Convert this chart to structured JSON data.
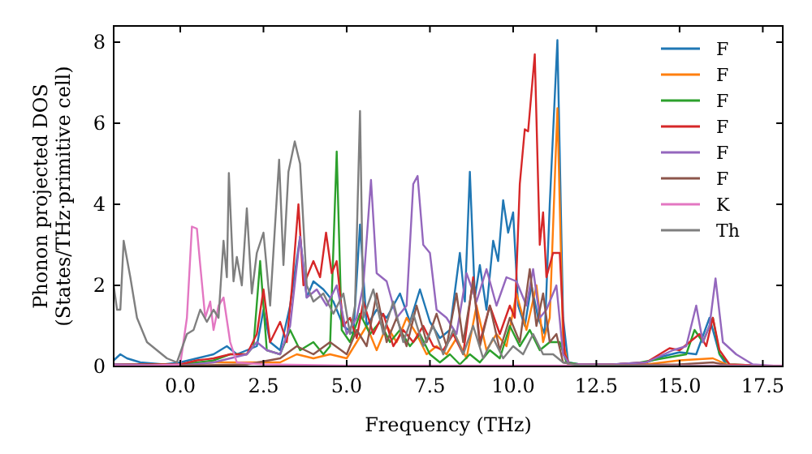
{
  "chart_data": {
    "type": "line",
    "xlabel": "Frequency (THz)",
    "ylabel": "Phonon projected DOS\n(States/THz·primitive cell)",
    "xlim": [
      -2,
      18.1
    ],
    "ylim": [
      0,
      8.4
    ],
    "xticks": [
      {
        "value": 0,
        "label": "0.0"
      },
      {
        "value": 2.5,
        "label": "2.5"
      },
      {
        "value": 5,
        "label": "5.0"
      },
      {
        "value": 7.5,
        "label": "7.5"
      },
      {
        "value": 10,
        "label": "10.0"
      },
      {
        "value": 12.5,
        "label": "12.5"
      },
      {
        "value": 15,
        "label": "15.0"
      },
      {
        "value": 17.5,
        "label": "17.5"
      }
    ],
    "yticks": [
      0,
      2,
      4,
      6,
      8
    ],
    "legend": "top right",
    "grid": false,
    "series": [
      {
        "name": "F",
        "color": "#1f77b4",
        "x": [
          -2,
          -1.8,
          -1.6,
          -1.2,
          -0.5,
          0,
          0.5,
          1,
          1.4,
          1.7,
          2,
          2.3,
          2.5,
          2.7,
          3,
          3.3,
          3.6,
          3.8,
          4,
          4.3,
          4.6,
          4.9,
          5.2,
          5.4,
          5.6,
          5.9,
          6.2,
          6.6,
          6.9,
          7.2,
          7.5,
          7.8,
          8.1,
          8.4,
          8.55,
          8.7,
          8.85,
          9,
          9.2,
          9.4,
          9.55,
          9.7,
          9.85,
          10,
          10.15,
          10.35,
          10.55,
          10.75,
          10.95,
          11.1,
          11.33,
          11.5,
          11.65,
          12,
          13,
          14,
          14.5,
          15,
          15.5,
          15.9,
          16.2,
          16.4
        ],
        "values": [
          0.15,
          0.3,
          0.2,
          0.1,
          0.05,
          0.1,
          0.2,
          0.3,
          0.5,
          0.3,
          0.4,
          0.5,
          1.4,
          0.6,
          0.4,
          1.5,
          3.2,
          1.7,
          2.1,
          1.9,
          1.6,
          1,
          0.8,
          3.5,
          1,
          1.4,
          1.2,
          1.8,
          1.1,
          1.9,
          1.1,
          0.7,
          0.9,
          2.8,
          1.6,
          4.8,
          1.7,
          2.5,
          1.4,
          3.1,
          2.6,
          4.1,
          3.3,
          3.8,
          1.5,
          1,
          2,
          1.2,
          0.8,
          4,
          8.05,
          1.2,
          0.1,
          0.05,
          0.05,
          0.1,
          0.25,
          0.35,
          0.3,
          1.2,
          0.3,
          0.05
        ]
      },
      {
        "name": "F",
        "color": "#ff7f0e",
        "x": [
          -2,
          0,
          1,
          2,
          3,
          3.5,
          4,
          4.5,
          5,
          5.3,
          5.6,
          5.9,
          6.2,
          6.5,
          6.8,
          7.1,
          7.4,
          7.7,
          8,
          8.3,
          8.6,
          8.9,
          9.2,
          9.5,
          9.8,
          10.1,
          10.4,
          10.7,
          10.9,
          11.1,
          11.33,
          11.5,
          11.65,
          14,
          15,
          16,
          16.5,
          18.1
        ],
        "values": [
          0.05,
          0.02,
          0.1,
          0.1,
          0.1,
          0.3,
          0.2,
          0.3,
          0.2,
          0.6,
          1,
          0.4,
          1,
          0.6,
          1.2,
          0.8,
          0.3,
          0.5,
          0.3,
          0.7,
          0.2,
          1.5,
          0.4,
          0.8,
          0.5,
          1.8,
          0.9,
          2,
          0.6,
          1.2,
          6.37,
          0.6,
          0.05,
          0.05,
          0.15,
          0.2,
          0.02,
          0
        ]
      },
      {
        "name": "F",
        "color": "#2ca02c",
        "x": [
          -2,
          0,
          1,
          1.5,
          2,
          2.2,
          2.4,
          2.6,
          3,
          3.3,
          3.6,
          4,
          4.3,
          4.5,
          4.7,
          4.85,
          5.1,
          5.4,
          5.7,
          6,
          6.3,
          6.6,
          6.9,
          7.2,
          7.5,
          7.8,
          8.1,
          8.4,
          8.7,
          9,
          9.3,
          9.6,
          9.9,
          10.2,
          10.5,
          10.8,
          11.1,
          11.4,
          11.6,
          12,
          13.5,
          14.5,
          15.2,
          15.45,
          15.7,
          16,
          16.2,
          16.5,
          18.1
        ],
        "values": [
          0.05,
          0.05,
          0.15,
          0.3,
          0.3,
          0.5,
          2.6,
          0.4,
          0.3,
          0.9,
          0.4,
          0.6,
          0.3,
          0.5,
          5.3,
          0.9,
          0.6,
          1.3,
          0.8,
          1.1,
          0.6,
          0.9,
          0.5,
          0.8,
          0.3,
          0.1,
          0.3,
          0.05,
          0.3,
          0.1,
          0.4,
          0.2,
          1,
          0.5,
          0.9,
          0.4,
          0.6,
          0.6,
          0.1,
          0.05,
          0.05,
          0.2,
          0.3,
          0.9,
          0.6,
          1.2,
          0.3,
          0.05,
          0
        ]
      },
      {
        "name": "F",
        "color": "#d62728",
        "x": [
          -2,
          0,
          0.5,
          1,
          1.5,
          2,
          2.3,
          2.5,
          2.7,
          3,
          3.2,
          3.35,
          3.55,
          3.7,
          4,
          4.2,
          4.38,
          4.55,
          4.7,
          4.9,
          5.1,
          5.3,
          5.5,
          5.8,
          6.1,
          6.4,
          6.7,
          7,
          7.3,
          7.6,
          7.9,
          8.2,
          8.5,
          8.8,
          9,
          9.3,
          9.6,
          9.9,
          10.05,
          10.2,
          10.35,
          10.45,
          10.65,
          10.8,
          10.9,
          11,
          11.2,
          11.4,
          11.55,
          11.7,
          13,
          14,
          14.7,
          15,
          15.3,
          15.6,
          15.8,
          16,
          16.2,
          16.5,
          18.1
        ],
        "values": [
          0.05,
          0.05,
          0.15,
          0.2,
          0.3,
          0.3,
          0.8,
          1.9,
          0.6,
          1.1,
          0.6,
          1.9,
          4,
          2,
          2.6,
          2.2,
          3.3,
          2.3,
          2.6,
          1,
          1.2,
          0.7,
          1.6,
          0.8,
          1.3,
          0.5,
          0.9,
          0.6,
          1,
          0.5,
          0.4,
          0.8,
          0.3,
          2.2,
          0.6,
          1.5,
          0.8,
          1.5,
          1.2,
          4.5,
          5.85,
          5.8,
          7.7,
          3,
          3.8,
          2.2,
          2.8,
          2.8,
          0.3,
          0.05,
          0.05,
          0.1,
          0.45,
          0.4,
          0.6,
          0.8,
          0.5,
          1.2,
          0.4,
          0.05,
          0
        ]
      },
      {
        "name": "F",
        "color": "#9467bd",
        "x": [
          -2,
          0,
          1,
          1.5,
          2,
          2.3,
          2.6,
          3,
          3.3,
          3.6,
          3.8,
          4.1,
          4.4,
          4.7,
          5,
          5.3,
          5.5,
          5.73,
          5.9,
          6.2,
          6.5,
          6.8,
          7,
          7.13,
          7.3,
          7.5,
          7.7,
          8,
          8.3,
          8.6,
          8.9,
          9.2,
          9.5,
          9.8,
          10.1,
          10.4,
          10.6,
          10.8,
          11,
          11.3,
          11.5,
          11.7,
          13,
          14,
          14.8,
          15.2,
          15.5,
          15.7,
          15.9,
          16.08,
          16.3,
          16.7,
          17.2,
          18.1
        ],
        "values": [
          0.05,
          0.02,
          0.1,
          0.2,
          0.3,
          0.6,
          0.4,
          0.3,
          1,
          3.2,
          1.7,
          1.9,
          1.5,
          2,
          0.8,
          1.2,
          2,
          4.6,
          2.3,
          2.1,
          1.2,
          1.5,
          4.5,
          4.7,
          3,
          2.8,
          1.4,
          1.2,
          0.8,
          2.3,
          1.6,
          2.4,
          1.5,
          2.2,
          2.1,
          1.5,
          2.4,
          1.2,
          1.4,
          2,
          0.3,
          0.05,
          0.05,
          0.1,
          0.4,
          0.5,
          1.5,
          0.6,
          1,
          2.17,
          0.6,
          0.3,
          0.05,
          0
        ]
      },
      {
        "name": "F",
        "color": "#8c564b",
        "x": [
          -2,
          0,
          2,
          3,
          3.5,
          4,
          4.5,
          5,
          5.3,
          5.6,
          5.9,
          6.2,
          6.5,
          6.8,
          7.1,
          7.4,
          7.7,
          8,
          8.3,
          8.5,
          8.8,
          9,
          9.3,
          9.6,
          9.9,
          10.2,
          10.5,
          10.7,
          10.9,
          11.1,
          11.3,
          11.5,
          12,
          15,
          16,
          16.5,
          18.1
        ],
        "values": [
          0.02,
          0.02,
          0.05,
          0.2,
          0.5,
          0.3,
          0.6,
          0.3,
          0.9,
          0.5,
          1.8,
          0.6,
          1.2,
          0.5,
          1.5,
          0.6,
          1.3,
          0.5,
          1.8,
          0.6,
          2.1,
          0.5,
          1.5,
          0.4,
          1.2,
          0.6,
          2.4,
          1,
          1.8,
          0.6,
          0.8,
          0.1,
          0.02,
          0.05,
          0.1,
          0.02,
          0
        ]
      },
      {
        "name": "K",
        "color": "#e377c2",
        "x": [
          -2,
          -1,
          0,
          0.2,
          0.35,
          0.5,
          0.6,
          0.75,
          0.9,
          1,
          1.15,
          1.3,
          1.5,
          1.7,
          2.5,
          5,
          18.1
        ],
        "values": [
          0.02,
          0.02,
          0.05,
          1.2,
          3.45,
          3.4,
          2.5,
          1.2,
          1.6,
          0.9,
          1.5,
          1.7,
          0.6,
          0.1,
          0.05,
          0.02,
          0.02
        ]
      },
      {
        "name": "Th",
        "color": "#7f7f7f",
        "x": [
          -2,
          -1.9,
          -1.8,
          -1.7,
          -1.5,
          -1.3,
          -1,
          -0.7,
          -0.4,
          -0.1,
          0.2,
          0.4,
          0.6,
          0.8,
          1,
          1.15,
          1.3,
          1.4,
          1.46,
          1.6,
          1.7,
          1.85,
          2,
          2.15,
          2.3,
          2.5,
          2.7,
          2.97,
          3.1,
          3.25,
          3.44,
          3.6,
          3.8,
          4,
          4.3,
          4.6,
          4.9,
          5.1,
          5.25,
          5.4,
          5.5,
          5.8,
          6.1,
          6.4,
          6.7,
          7,
          7.3,
          7.6,
          7.9,
          8.2,
          8.5,
          8.8,
          9.1,
          9.4,
          9.7,
          10,
          10.3,
          10.6,
          10.9,
          11.2,
          11.5,
          12,
          18.1
        ],
        "values": [
          2,
          1.4,
          1.4,
          3.1,
          2.2,
          1.2,
          0.6,
          0.4,
          0.2,
          0.1,
          0.8,
          0.9,
          1.4,
          1.1,
          1.4,
          1.2,
          3.1,
          2.2,
          4.77,
          2.1,
          2.7,
          2,
          3.9,
          1.8,
          2.8,
          3.3,
          1.5,
          5.1,
          2.5,
          4.8,
          5.55,
          5,
          2,
          1.6,
          1.8,
          1.3,
          1.8,
          0.8,
          1.5,
          6.3,
          1.2,
          1.9,
          0.8,
          1.6,
          0.6,
          1.3,
          0.5,
          1,
          0.3,
          0.9,
          0.3,
          1,
          0.2,
          0.7,
          0.2,
          0.5,
          0.3,
          0.8,
          0.3,
          0.3,
          0.1,
          0.02,
          0
        ]
      }
    ]
  }
}
